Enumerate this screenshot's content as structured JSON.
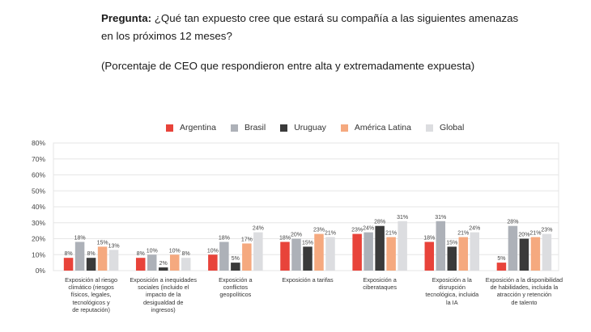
{
  "question": {
    "label": "Pregunta:",
    "text": " ¿Qué tan expuesto cree que estará su compañía a las siguientes amenazas en los próximos 12 meses?"
  },
  "subtitle": "(Porcentaje de CEO que respondieron entre alta y extremadamente expuesta)",
  "chart_data": {
    "type": "bar",
    "title": "¿Qué tan expuesto cree que estará su compañía a las siguientes amenazas en los próximos 12 meses?",
    "subtitle": "(Porcentaje de CEO que respondieron entre alta y extremadamente expuesta)",
    "xlabel": "",
    "ylabel": "",
    "ylim": [
      0,
      80
    ],
    "yticks": [
      0,
      10,
      20,
      30,
      40,
      50,
      60,
      70,
      80
    ],
    "ytick_labels": [
      "0%",
      "10%",
      "20%",
      "30%",
      "40%",
      "50%",
      "60%",
      "70%",
      "80%"
    ],
    "grid": true,
    "legend_position": "top",
    "categories": [
      "Exposición al riesgo climático (riesgos físicos, legales, tecnológicos y de reputación)",
      "Exposición a inequidades sociales (incluido el impacto de la desigualdad de ingresos)",
      "Exposición a conflictos geopolíticos",
      "Exposición a tarifas",
      "Exposición a ciberataques",
      "Exposición a la disrupción tecnológica, incluida la IA",
      "Exposición a la disponibilidad de habilidades, incluida la atracción y retención de talento"
    ],
    "category_lines": [
      [
        "Exposición al riesgo",
        "climático (riesgos",
        "físicos, legales,",
        "tecnológicos y",
        "de reputación)"
      ],
      [
        "Exposición a inequidades",
        "sociales (incluido el",
        "impacto de la",
        "desigualdad de",
        "ingresos)"
      ],
      [
        "Exposición a",
        "conflictos",
        "geopolíticos"
      ],
      [
        "Exposición a tarifas"
      ],
      [
        "Exposición a",
        "ciberataques"
      ],
      [
        "Exposición a la",
        "disrupción",
        "tecnológica, incluida",
        "la IA"
      ],
      [
        "Exposición a la disponibilidad",
        "de habilidades, incluida la",
        "atracción y retención",
        "de talento"
      ]
    ],
    "series": [
      {
        "name": "Argentina",
        "color": "#e8433a",
        "values": [
          8,
          8,
          10,
          18,
          23,
          18,
          5
        ]
      },
      {
        "name": "Brasil",
        "color": "#adb1b8",
        "values": [
          18,
          10,
          18,
          20,
          24,
          31,
          28
        ]
      },
      {
        "name": "Uruguay",
        "color": "#3a3a3a",
        "values": [
          8,
          2,
          5,
          15,
          28,
          15,
          20
        ]
      },
      {
        "name": "América Latina",
        "color": "#f5a97f",
        "values": [
          15,
          10,
          17,
          23,
          21,
          21,
          21
        ]
      },
      {
        "name": "Global",
        "color": "#dcdde0",
        "values": [
          13,
          8,
          24,
          21,
          31,
          24,
          23
        ]
      }
    ],
    "value_suffix": "%"
  }
}
